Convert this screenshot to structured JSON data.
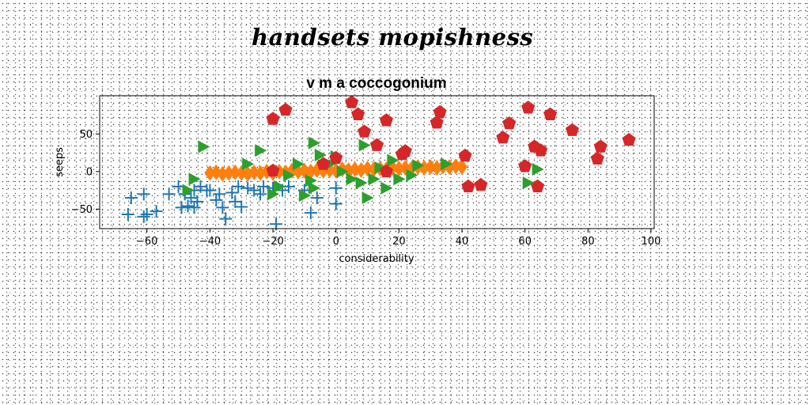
{
  "figure": {
    "suptitle": "handsets mopishness"
  },
  "chart_data": {
    "type": "scatter",
    "title": "v m a coccogonium",
    "xlabel": "considerability",
    "ylabel": "seeps",
    "xlim": [
      -75,
      101
    ],
    "ylim": [
      -76,
      101
    ],
    "xticks": [
      -60,
      -40,
      -20,
      0,
      20,
      40,
      60,
      80,
      100
    ],
    "yticks": [
      -50,
      0,
      50
    ],
    "xtick_labels": [
      "−60",
      "−40",
      "−20",
      "0",
      "20",
      "40",
      "60",
      "80",
      "100"
    ],
    "ytick_labels": [
      "−50",
      "0",
      "50"
    ],
    "grid": false,
    "legend": "none",
    "series": [
      {
        "marker": "plus",
        "color": "#1f77b4",
        "points": [
          [
            -66,
            -57
          ],
          [
            -65,
            -35
          ],
          [
            -61,
            -30
          ],
          [
            -61,
            -60
          ],
          [
            -60,
            -57
          ],
          [
            -57,
            -53
          ],
          [
            -53,
            -30
          ],
          [
            -50,
            -20
          ],
          [
            -49,
            -48
          ],
          [
            -48,
            -30
          ],
          [
            -47,
            -46
          ],
          [
            -46,
            -35
          ],
          [
            -45,
            -25
          ],
          [
            -45,
            -48
          ],
          [
            -44,
            -40
          ],
          [
            -43,
            -20
          ],
          [
            -41,
            -25
          ],
          [
            -40,
            -25
          ],
          [
            -38,
            -38
          ],
          [
            -37,
            -30
          ],
          [
            -36,
            -48
          ],
          [
            -35,
            -63
          ],
          [
            -33,
            -28
          ],
          [
            -32,
            -40
          ],
          [
            -31,
            -20
          ],
          [
            -30,
            -47
          ],
          [
            -28,
            -22
          ],
          [
            -26,
            -25
          ],
          [
            -24,
            -30
          ],
          [
            -23,
            -20
          ],
          [
            -20,
            -22
          ],
          [
            -19,
            -70
          ],
          [
            -17,
            -25
          ],
          [
            -15,
            -20
          ],
          [
            -10,
            -25
          ],
          [
            -8,
            -55
          ],
          [
            -6,
            -35
          ],
          [
            0,
            -22
          ],
          [
            0,
            -43
          ]
        ]
      },
      {
        "marker": "diamond",
        "color": "#ff7f0e",
        "points": [
          [
            -40,
            -2
          ],
          [
            -38,
            -1
          ],
          [
            -36,
            -3
          ],
          [
            -34,
            -2
          ],
          [
            -32,
            -1
          ],
          [
            -30,
            -2
          ],
          [
            -28,
            -3
          ],
          [
            -26,
            -1
          ],
          [
            -24,
            -2
          ],
          [
            -22,
            0
          ],
          [
            -20,
            -2
          ],
          [
            -18,
            0
          ],
          [
            -16,
            -1
          ],
          [
            -14,
            1
          ],
          [
            -12,
            0
          ],
          [
            -10,
            1
          ],
          [
            -8,
            0
          ],
          [
            -6,
            2
          ],
          [
            -4,
            1
          ],
          [
            -2,
            2
          ],
          [
            0,
            1
          ],
          [
            2,
            3
          ],
          [
            4,
            2
          ],
          [
            6,
            3
          ],
          [
            8,
            2
          ],
          [
            10,
            4
          ],
          [
            12,
            3
          ],
          [
            14,
            4
          ],
          [
            16,
            3
          ],
          [
            18,
            5
          ],
          [
            20,
            4
          ],
          [
            22,
            5
          ],
          [
            24,
            4
          ],
          [
            26,
            6
          ],
          [
            28,
            5
          ],
          [
            30,
            6
          ],
          [
            32,
            5
          ],
          [
            34,
            7
          ],
          [
            36,
            6
          ],
          [
            38,
            7
          ],
          [
            40,
            6
          ]
        ]
      },
      {
        "marker": "triangle-right",
        "color": "#2ca02c",
        "points": [
          [
            -47,
            -25
          ],
          [
            -45,
            -10
          ],
          [
            -42,
            33
          ],
          [
            -28,
            10
          ],
          [
            -24,
            28
          ],
          [
            -20,
            -30
          ],
          [
            -18,
            -20
          ],
          [
            -15,
            -5
          ],
          [
            -12,
            10
          ],
          [
            -10,
            -32
          ],
          [
            -8,
            -12
          ],
          [
            -7,
            38
          ],
          [
            -7,
            -22
          ],
          [
            -5,
            22
          ],
          [
            -2,
            10
          ],
          [
            0,
            20
          ],
          [
            2,
            0
          ],
          [
            5,
            -10
          ],
          [
            8,
            -15
          ],
          [
            9,
            35
          ],
          [
            10,
            -35
          ],
          [
            12,
            -10
          ],
          [
            14,
            5
          ],
          [
            16,
            -22
          ],
          [
            18,
            15
          ],
          [
            20,
            -10
          ],
          [
            24,
            -5
          ],
          [
            26,
            8
          ],
          [
            35,
            10
          ],
          [
            61,
            -15
          ],
          [
            64,
            3
          ]
        ]
      },
      {
        "marker": "pentagon",
        "color": "#d62728",
        "points": [
          [
            -20,
            70
          ],
          [
            -16,
            82
          ],
          [
            -20,
            1
          ],
          [
            -4,
            10
          ],
          [
            0,
            18
          ],
          [
            5,
            92
          ],
          [
            7,
            76
          ],
          [
            9,
            53
          ],
          [
            13,
            35
          ],
          [
            16,
            0
          ],
          [
            16,
            68
          ],
          [
            21,
            23
          ],
          [
            22,
            27
          ],
          [
            32,
            65
          ],
          [
            33,
            79
          ],
          [
            41,
            21
          ],
          [
            42,
            -20
          ],
          [
            46,
            -18
          ],
          [
            53,
            45
          ],
          [
            55,
            64
          ],
          [
            60,
            7
          ],
          [
            61,
            85
          ],
          [
            63,
            33
          ],
          [
            65,
            28
          ],
          [
            64,
            -20
          ],
          [
            68,
            76
          ],
          [
            75,
            55
          ],
          [
            83,
            17
          ],
          [
            84,
            33
          ],
          [
            93,
            42
          ]
        ]
      }
    ]
  }
}
